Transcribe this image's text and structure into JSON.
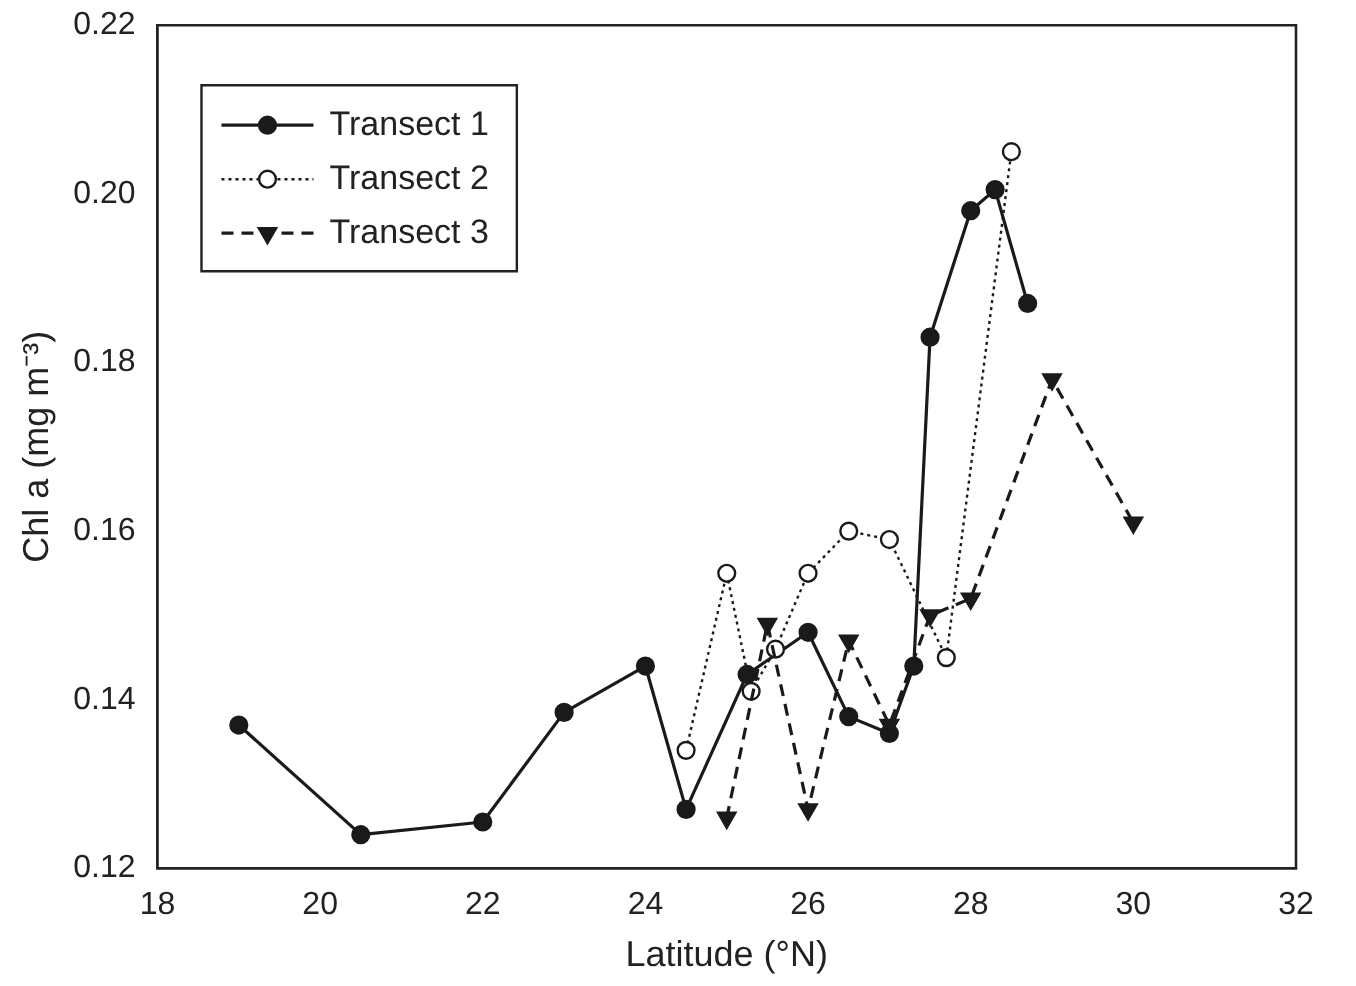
{
  "chart_data": {
    "type": "line",
    "xlabel": "Latitude (°N)",
    "ylabel": "Chl a (mg m⁻³)",
    "xlim": [
      18,
      32
    ],
    "xticks": [
      18,
      20,
      22,
      24,
      26,
      28,
      30,
      32
    ],
    "ylim": [
      0.12,
      0.22
    ],
    "yticks": [
      {
        "value": 0.12,
        "label": "0.12"
      },
      {
        "value": 0.14,
        "label": "0.14"
      },
      {
        "value": 0.16,
        "label": "0.16"
      },
      {
        "value": 0.18,
        "label": "0.18"
      },
      {
        "value": 0.2,
        "label": "0.20"
      },
      {
        "value": 0.22,
        "label": "0.22"
      }
    ],
    "grid": false,
    "legend": "top left",
    "series": [
      {
        "name": "Transect 1",
        "color": "#1a1a1a",
        "marker": "circle",
        "line_style": "solid",
        "x": [
          19,
          20.5,
          22,
          23,
          24,
          24.5,
          25.25,
          26,
          26.5,
          27,
          27.3,
          27.5,
          28,
          28.3,
          28.7
        ],
        "values": [
          0.137,
          0.124,
          0.1255,
          0.1385,
          0.144,
          0.127,
          0.143,
          0.148,
          0.138,
          0.136,
          0.144,
          0.183,
          0.198,
          0.2005,
          0.187
        ]
      },
      {
        "name": "Transect 2",
        "color": "#1a1a1a",
        "marker": "open circle",
        "line_style": "dotted",
        "x": [
          24.5,
          25,
          25.3,
          25.6,
          26,
          26.5,
          27,
          27.7,
          28.5
        ],
        "values": [
          0.134,
          0.155,
          0.141,
          0.146,
          0.155,
          0.16,
          0.159,
          0.145,
          0.205
        ]
      },
      {
        "name": "Transect 3",
        "color": "#1a1a1a",
        "marker": "triangle",
        "line_style": "dashed",
        "x": [
          25,
          25.5,
          26,
          26.5,
          27,
          27.5,
          28,
          29,
          30
        ],
        "values": [
          0.126,
          0.149,
          0.127,
          0.147,
          0.137,
          0.15,
          0.152,
          0.178,
          0.161
        ]
      }
    ]
  }
}
